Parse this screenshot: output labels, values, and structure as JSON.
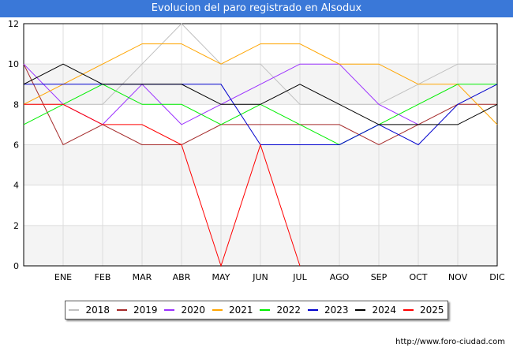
{
  "chart_data": {
    "type": "line",
    "title": "Evolucion del paro registrado en Alsodux",
    "xlabel": "",
    "ylabel": "",
    "categories": [
      "",
      "ENE",
      "FEB",
      "MAR",
      "ABR",
      "MAY",
      "JUN",
      "JUL",
      "AGO",
      "SEP",
      "OCT",
      "NOV",
      "DIC"
    ],
    "ylim": [
      0,
      12
    ],
    "yticks": [
      0,
      2,
      4,
      6,
      8,
      10,
      12
    ],
    "grid": true,
    "legend_position": "bottom",
    "series": [
      {
        "name": "2018",
        "color": "#c0c0c0",
        "values": [
          8,
          8,
          8,
          10,
          12,
          10,
          10,
          8,
          8,
          8,
          9,
          10,
          10
        ]
      },
      {
        "name": "2019",
        "color": "#a52a2a",
        "values": [
          10,
          6,
          7,
          6,
          6,
          7,
          7,
          7,
          7,
          6,
          7,
          8,
          8
        ]
      },
      {
        "name": "2020",
        "color": "#9b30ff",
        "values": [
          10,
          8,
          7,
          9,
          7,
          8,
          9,
          10,
          10,
          8,
          7,
          null,
          null
        ]
      },
      {
        "name": "2021",
        "color": "#ffa500",
        "values": [
          8,
          9,
          10,
          11,
          11,
          10,
          11,
          11,
          10,
          10,
          9,
          9,
          7
        ]
      },
      {
        "name": "2022",
        "color": "#00ee00",
        "values": [
          7,
          8,
          9,
          8,
          8,
          7,
          8,
          7,
          6,
          7,
          8,
          9,
          9
        ]
      },
      {
        "name": "2023",
        "color": "#0000cd",
        "values": [
          9,
          9,
          9,
          9,
          9,
          9,
          6,
          6,
          6,
          7,
          6,
          8,
          9
        ]
      },
      {
        "name": "2024",
        "color": "#000000",
        "values": [
          9,
          10,
          9,
          9,
          9,
          8,
          8,
          9,
          8,
          7,
          7,
          7,
          8
        ]
      },
      {
        "name": "2025",
        "color": "#ff0000",
        "values": [
          8,
          8,
          7,
          7,
          6,
          0,
          6,
          0,
          null,
          null,
          null,
          null,
          null
        ]
      }
    ]
  },
  "credit": "http://www.foro-ciudad.com"
}
